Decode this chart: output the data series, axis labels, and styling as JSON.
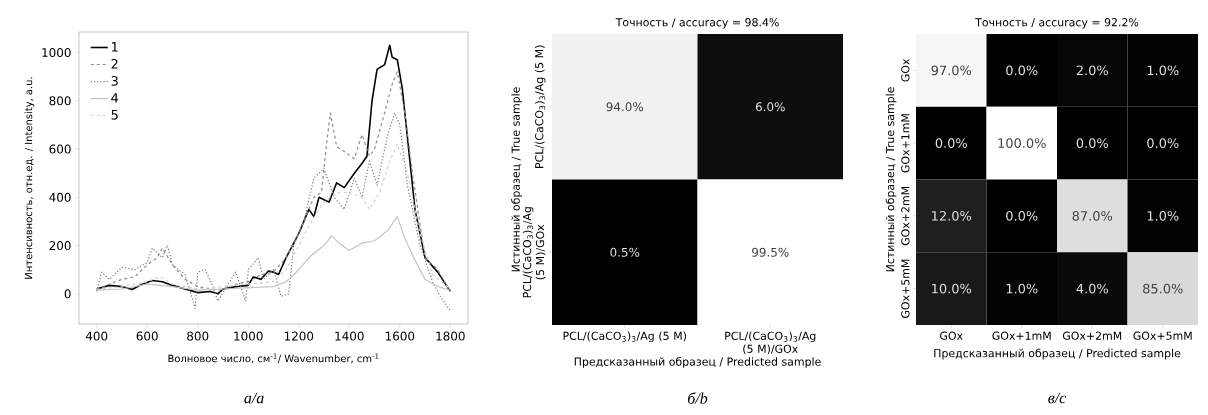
{
  "chart_data": [
    {
      "type": "line",
      "xlabel": "Волновое число, см$^{-1}$/ Wavenumber, cm$^{-1}$",
      "ylabel": "Интенсивность, отн.ед. / Intensity, a.u.",
      "annotations": [
        "a/a"
      ],
      "xlim": [
        330,
        1870
      ],
      "ylim": [
        -125,
        1085
      ],
      "xticks": [
        400,
        600,
        800,
        1000,
        1200,
        1400,
        1600,
        1800
      ],
      "yticks": [
        0,
        200,
        400,
        600,
        800,
        1000
      ],
      "legend": "top left",
      "grid": false,
      "marker": "none",
      "series": [
        {
          "name": "1",
          "color": "#000000",
          "line_style": "solid",
          "x": [
            400,
            450,
            500,
            540,
            580,
            620,
            660,
            700,
            750,
            800,
            850,
            880,
            900,
            950,
            1000,
            1020,
            1050,
            1080,
            1100,
            1120,
            1150,
            1200,
            1240,
            1260,
            1280,
            1300,
            1320,
            1350,
            1380,
            1420,
            1450,
            1470,
            1490,
            1510,
            1540,
            1560,
            1570,
            1590,
            1610,
            1640,
            1660,
            1700,
            1750,
            1800
          ],
          "values": [
            20,
            35,
            30,
            18,
            40,
            55,
            50,
            35,
            20,
            5,
            10,
            0,
            20,
            30,
            35,
            70,
            60,
            95,
            90,
            80,
            150,
            250,
            350,
            320,
            400,
            390,
            380,
            460,
            440,
            500,
            540,
            570,
            800,
            930,
            950,
            1030,
            980,
            970,
            850,
            550,
            350,
            150,
            90,
            10
          ]
        },
        {
          "name": "2",
          "color": "#8a8a8a",
          "line_style": "dashed",
          "x": [
            400,
            450,
            500,
            550,
            600,
            640,
            660,
            700,
            750,
            800,
            850,
            900,
            950,
            1000,
            1050,
            1100,
            1150,
            1200,
            1260,
            1290,
            1310,
            1325,
            1350,
            1380,
            1420,
            1450,
            1480,
            1500,
            1540,
            1570,
            1590,
            1620,
            1650,
            1700,
            1750,
            1800
          ],
          "values": [
            15,
            40,
            60,
            70,
            120,
            150,
            190,
            120,
            60,
            30,
            20,
            15,
            40,
            50,
            80,
            90,
            150,
            250,
            400,
            420,
            620,
            750,
            610,
            590,
            560,
            660,
            570,
            600,
            750,
            870,
            920,
            750,
            500,
            150,
            100,
            10
          ]
        },
        {
          "name": "3",
          "color": "#777777",
          "line_style": "dotted",
          "x": [
            400,
            420,
            450,
            500,
            550,
            600,
            620,
            660,
            680,
            700,
            750,
            790,
            800,
            830,
            860,
            880,
            950,
            990,
            1000,
            1040,
            1060,
            1100,
            1130,
            1160,
            1180,
            1220,
            1260,
            1300,
            1340,
            1380,
            1420,
            1450,
            1480,
            1510,
            1550,
            1580,
            1600,
            1630,
            1680,
            1730,
            1760,
            1800
          ],
          "values": [
            10,
            90,
            60,
            110,
            100,
            130,
            190,
            150,
            200,
            120,
            80,
            -60,
            90,
            100,
            30,
            -30,
            90,
            -30,
            100,
            150,
            60,
            100,
            -10,
            0,
            200,
            300,
            480,
            520,
            400,
            350,
            480,
            400,
            550,
            450,
            650,
            750,
            700,
            450,
            200,
            50,
            -10,
            -70
          ]
        },
        {
          "name": "4",
          "color": "#c4c4c4",
          "line_style": "solid",
          "x": [
            400,
            500,
            600,
            700,
            800,
            900,
            1000,
            1100,
            1150,
            1200,
            1250,
            1300,
            1330,
            1360,
            1400,
            1450,
            1500,
            1550,
            1590,
            1620,
            1660,
            1700,
            1750,
            1800
          ],
          "values": [
            15,
            20,
            40,
            30,
            15,
            20,
            25,
            30,
            50,
            100,
            160,
            200,
            240,
            210,
            180,
            210,
            220,
            260,
            320,
            230,
            140,
            60,
            30,
            15
          ]
        },
        {
          "name": "5",
          "color": "#d2d2d2",
          "line_style": "dashed",
          "x": [
            400,
            500,
            600,
            650,
            700,
            800,
            900,
            1000,
            1100,
            1150,
            1200,
            1250,
            1300,
            1350,
            1400,
            1450,
            1480,
            1520,
            1560,
            1590,
            1630,
            1680,
            1730,
            1800
          ],
          "values": [
            20,
            30,
            50,
            70,
            40,
            20,
            30,
            40,
            50,
            100,
            200,
            300,
            380,
            420,
            420,
            400,
            350,
            420,
            550,
            620,
            500,
            250,
            80,
            20
          ]
        }
      ]
    },
    {
      "type": "heatmap",
      "title": "Точность / accuracy = 98.4%",
      "xlabel": "Предсказанный образец / Predicted sample",
      "ylabel": "Истинный образец / True sample",
      "annotations": [
        "б/b"
      ],
      "categories": [
        "PCL/(CaCO$_{3}$)$_{3}$/Ag (5 M)",
        "PCL/(CaCO$_{3}$)$_{3}$/Ag (5 M)/GOx"
      ],
      "y_categories": [
        "PCL/(CaCO$_{3}$)$_{3}$/Ag (5 M)",
        "PCL/(CaCO$_{3}$)$_{3}$/Ag (5 M)/GOx"
      ],
      "cells": [
        [
          94.0,
          6.0
        ],
        [
          0.5,
          99.5
        ]
      ],
      "cell_labels": [
        [
          "94.0%",
          "6.0%"
        ],
        [
          "0.5%",
          "99.5%"
        ]
      ]
    },
    {
      "type": "heatmap",
      "title": "Точность / accuracy = 92.2%",
      "xlabel": "Предсказанный образец / Predicted sample",
      "ylabel": "Истинный образец / True sample",
      "annotations": [
        "в/c"
      ],
      "categories": [
        "GOx",
        "GOx+1mM",
        "GOx+2mM",
        "GOx+5mM"
      ],
      "y_categories": [
        "GOx",
        "GOx+1mM",
        "GOx+2mM",
        "GOx+5mM"
      ],
      "cells": [
        [
          97.0,
          0.0,
          2.0,
          1.0
        ],
        [
          0.0,
          100.0,
          0.0,
          0.0
        ],
        [
          12.0,
          0.0,
          87.0,
          1.0
        ],
        [
          10.0,
          1.0,
          4.0,
          85.0
        ]
      ],
      "cell_labels": [
        [
          "97.0%",
          "0.0%",
          "2.0%",
          "1.0%"
        ],
        [
          "0.0%",
          "100.0%",
          "0.0%",
          "0.0%"
        ],
        [
          "12.0%",
          "0.0%",
          "87.0%",
          "1.0%"
        ],
        [
          "10.0%",
          "1.0%",
          "4.0%",
          "85.0%"
        ]
      ]
    }
  ]
}
